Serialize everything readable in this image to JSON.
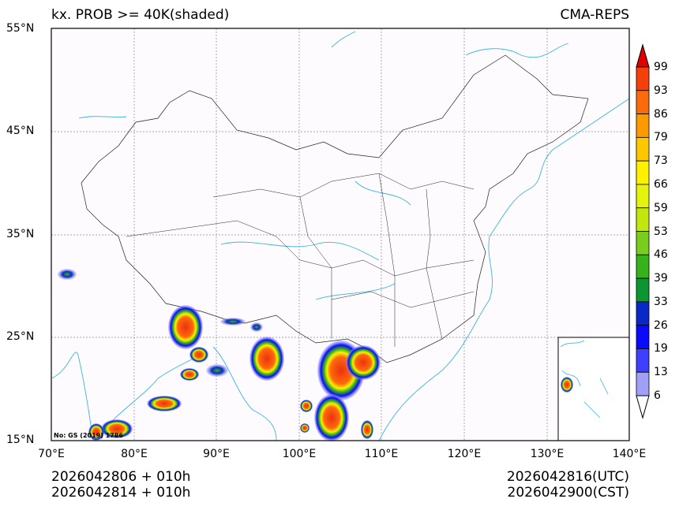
{
  "title_left": "kx. PROB >= 40K(shaded)",
  "title_right": "CMA-REPS",
  "lat_labels": [
    "55°N",
    "45°N",
    "35°N",
    "25°N",
    "15°N"
  ],
  "lon_labels": [
    "70°E",
    "80°E",
    "90°E",
    "100°E",
    "110°E",
    "120°E",
    "130°E",
    "140°E"
  ],
  "colorbar": {
    "labels": [
      "99",
      "93",
      "86",
      "79",
      "73",
      "66",
      "59",
      "53",
      "46",
      "39",
      "33",
      "26",
      "19",
      "13",
      "6"
    ],
    "colors": [
      "#f5400c",
      "#fb6a0c",
      "#fd9a00",
      "#fdc800",
      "#fdf100",
      "#e5f20c",
      "#c3e60f",
      "#7acc1f",
      "#36b21a",
      "#0c9632",
      "#0a28c8",
      "#0a0aff",
      "#4040fc",
      "#a0a0f8"
    ],
    "over_color": "#e00000",
    "under_color": "#ffffff"
  },
  "watermark": "No: GS (2019) 1786",
  "footer": {
    "init_utc": "2026042806  +  010h",
    "init_cst": "2026042814  +  010h",
    "valid_utc": "2026042816(UTC)",
    "valid_cst": "2026042900(CST)"
  }
}
